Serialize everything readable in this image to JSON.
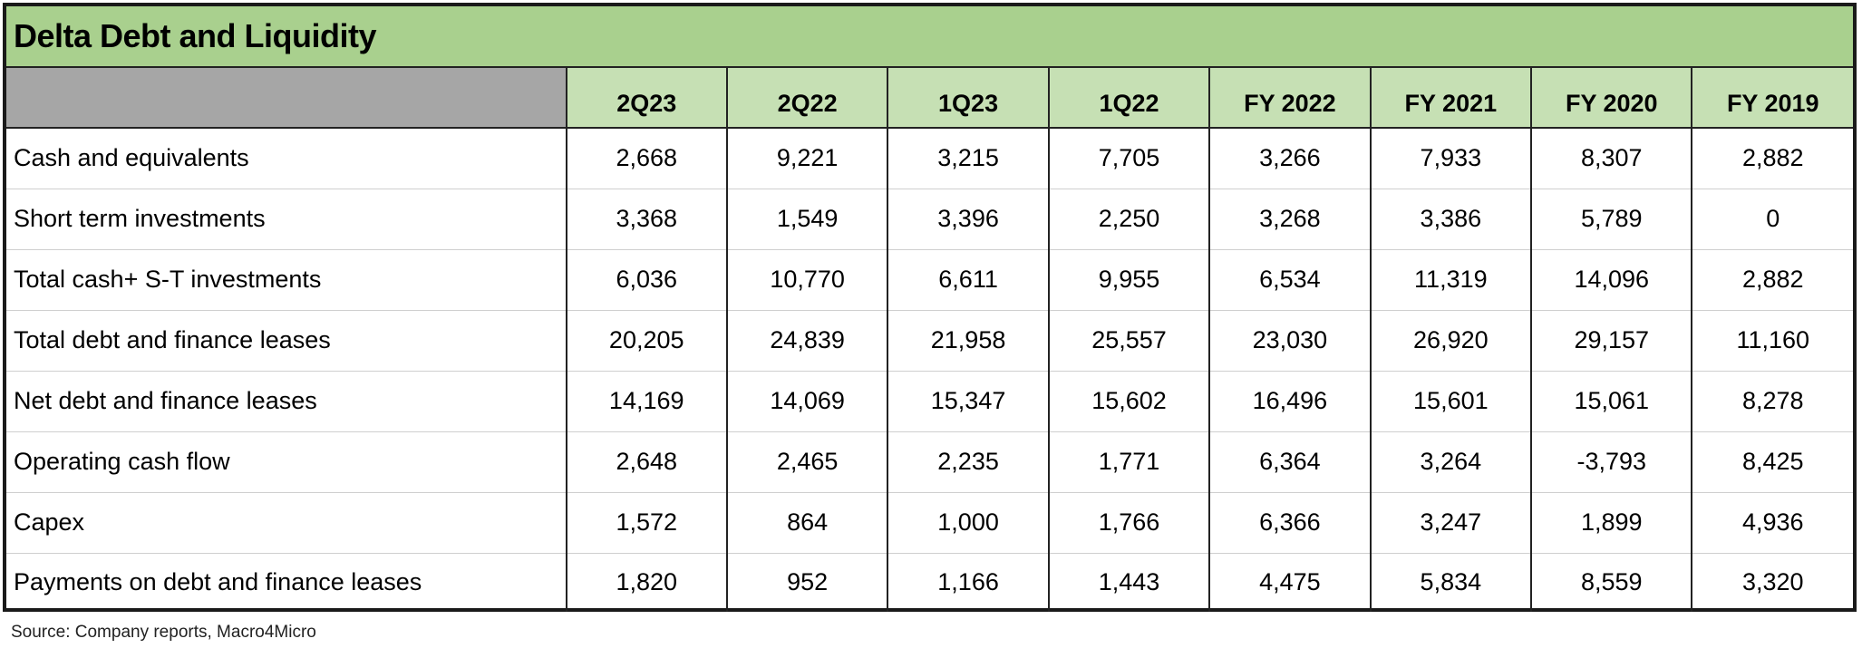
{
  "title": "Delta Debt and Liquidity",
  "columns": [
    "2Q23",
    "2Q22",
    "1Q23",
    "1Q22",
    "FY 2022",
    "FY 2021",
    "FY 2020",
    "FY 2019"
  ],
  "rows": [
    {
      "label": "Cash and equivalents",
      "values": [
        "2,668",
        "9,221",
        "3,215",
        "7,705",
        "3,266",
        "7,933",
        "8,307",
        "2,882"
      ]
    },
    {
      "label": "Short term investments",
      "values": [
        "3,368",
        "1,549",
        "3,396",
        "2,250",
        "3,268",
        "3,386",
        "5,789",
        "0"
      ]
    },
    {
      "label": "Total cash+ S-T investments",
      "values": [
        "6,036",
        "10,770",
        "6,611",
        "9,955",
        "6,534",
        "11,319",
        "14,096",
        "2,882"
      ]
    },
    {
      "label": "Total debt and finance leases",
      "values": [
        "20,205",
        "24,839",
        "21,958",
        "25,557",
        "23,030",
        "26,920",
        "29,157",
        "11,160"
      ]
    },
    {
      "label": "Net debt and finance leases",
      "values": [
        "14,169",
        "14,069",
        "15,347",
        "15,602",
        "16,496",
        "15,601",
        "15,061",
        "8,278"
      ]
    },
    {
      "label": "Operating cash flow",
      "values": [
        "2,648",
        "2,465",
        "2,235",
        "1,771",
        "6,364",
        "3,264",
        "-3,793",
        "8,425"
      ]
    },
    {
      "label": "Capex",
      "values": [
        "1,572",
        "864",
        "1,000",
        "1,766",
        "6,366",
        "3,247",
        "1,899",
        "4,936"
      ]
    },
    {
      "label": "Payments on debt and finance leases",
      "values": [
        "1,820",
        "952",
        "1,166",
        "1,443",
        "4,475",
        "5,834",
        "8,559",
        "3,320"
      ]
    }
  ],
  "source": "Source:  Company reports,  Macro4Micro",
  "colors": {
    "title_bg": "#a9d08e",
    "header_bg": "#c6e0b4",
    "corner_bg": "#a6a6a6"
  }
}
